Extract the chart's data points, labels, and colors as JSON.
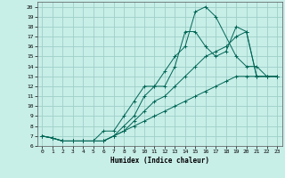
{
  "xlabel": "Humidex (Indice chaleur)",
  "xlim": [
    -0.5,
    23.5
  ],
  "ylim": [
    6,
    20.5
  ],
  "xticks": [
    0,
    1,
    2,
    3,
    4,
    5,
    6,
    7,
    8,
    9,
    10,
    11,
    12,
    13,
    14,
    15,
    16,
    17,
    18,
    19,
    20,
    21,
    22,
    23
  ],
  "yticks": [
    6,
    7,
    8,
    9,
    10,
    11,
    12,
    13,
    14,
    15,
    16,
    17,
    18,
    19,
    20
  ],
  "bg_color": "#c8eee8",
  "grid_color": "#9dcfc8",
  "line_color": "#006655",
  "lines": [
    {
      "x": [
        0,
        1,
        2,
        3,
        4,
        5,
        6,
        7,
        8,
        9,
        10,
        11,
        12,
        13,
        14,
        15,
        16,
        17,
        19,
        20,
        21,
        22,
        23
      ],
      "y": [
        7,
        6.8,
        6.5,
        6.5,
        6.5,
        6.5,
        7.5,
        7.5,
        9,
        10.5,
        12,
        12,
        13.5,
        15,
        16,
        19.5,
        20,
        19,
        15,
        14,
        14,
        13,
        13
      ]
    },
    {
      "x": [
        0,
        1,
        2,
        3,
        4,
        5,
        6,
        7,
        8,
        9,
        10,
        11,
        12,
        13,
        14,
        15,
        16,
        17,
        18,
        19,
        20,
        21,
        22,
        23
      ],
      "y": [
        7,
        6.8,
        6.5,
        6.5,
        6.5,
        6.5,
        6.5,
        7,
        8,
        9,
        11,
        12,
        12,
        14,
        17.5,
        17.5,
        16,
        15,
        15.5,
        18,
        17.5,
        13,
        13,
        13
      ]
    },
    {
      "x": [
        0,
        1,
        2,
        3,
        4,
        5,
        6,
        7,
        8,
        9,
        10,
        11,
        12,
        13,
        14,
        15,
        16,
        17,
        18,
        19,
        20,
        21,
        22,
        23
      ],
      "y": [
        7,
        6.8,
        6.5,
        6.5,
        6.5,
        6.5,
        6.5,
        7,
        7.5,
        8.5,
        9.5,
        10.5,
        11,
        12,
        13,
        14,
        15,
        15.5,
        16,
        17,
        17.5,
        13,
        13,
        13
      ]
    },
    {
      "x": [
        0,
        1,
        2,
        3,
        4,
        5,
        6,
        7,
        8,
        9,
        10,
        11,
        12,
        13,
        14,
        15,
        16,
        17,
        18,
        19,
        20,
        21,
        22,
        23
      ],
      "y": [
        7,
        6.8,
        6.5,
        6.5,
        6.5,
        6.5,
        6.5,
        7,
        7.5,
        8,
        8.5,
        9,
        9.5,
        10,
        10.5,
        11,
        11.5,
        12,
        12.5,
        13,
        13,
        13,
        13,
        13
      ]
    }
  ]
}
